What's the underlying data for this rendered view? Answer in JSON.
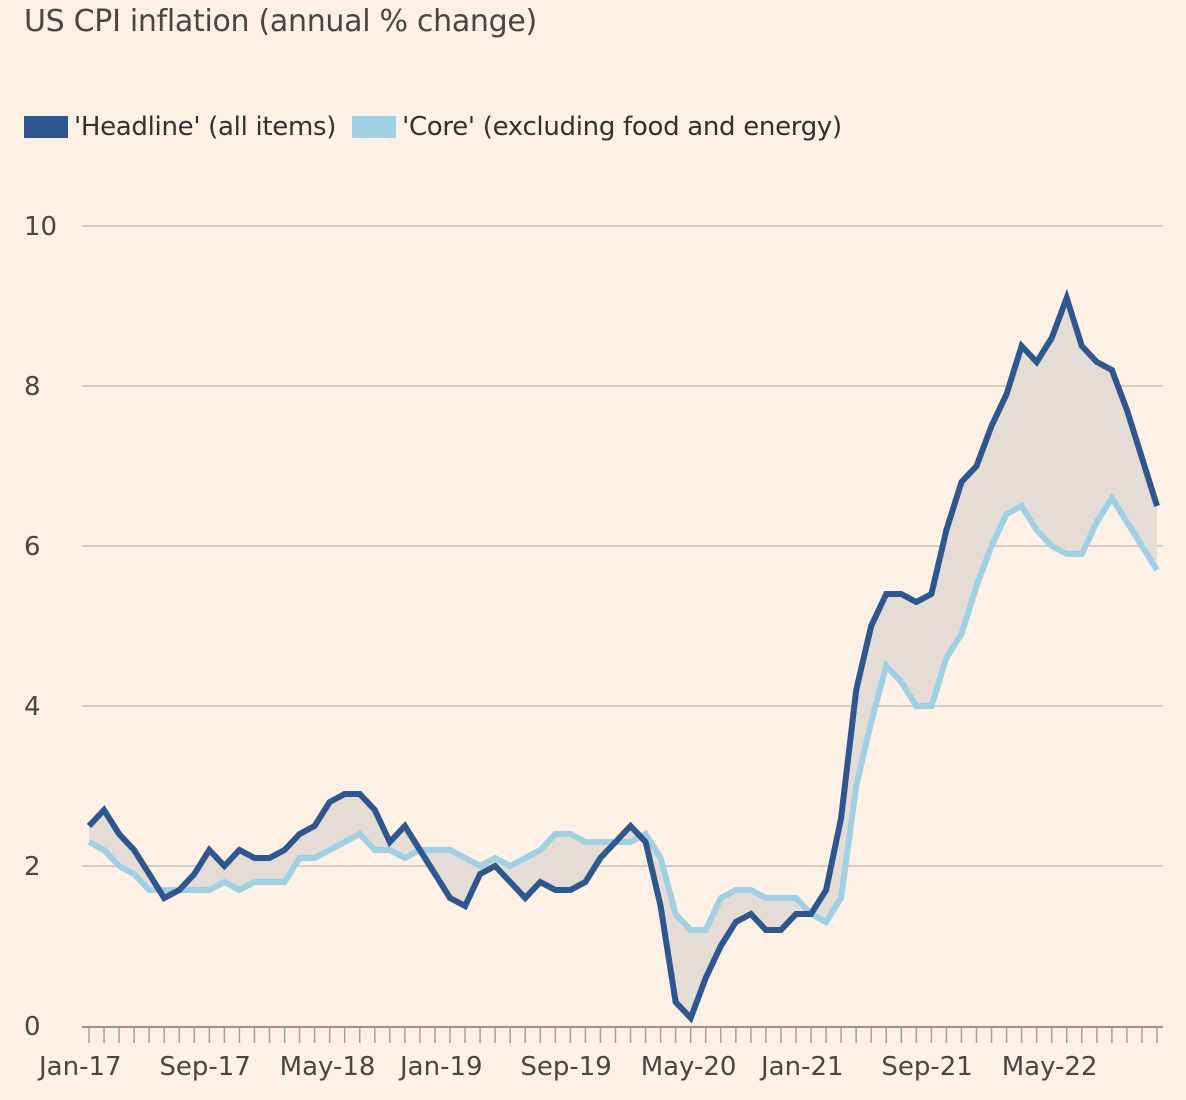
{
  "chart_data": {
    "type": "line",
    "title": "US CPI inflation (annual % change)",
    "xlabel": "",
    "ylabel": "",
    "ylim": [
      0,
      10
    ],
    "yticks": [
      0,
      2,
      4,
      6,
      8,
      10
    ],
    "grid": true,
    "legend_position": "top-left",
    "x_start": "Jan-17",
    "x_end": "Dec-22",
    "x_tick_labels": [
      {
        "label": "Jan-17",
        "index": 0
      },
      {
        "label": "Sep-17",
        "index": 8
      },
      {
        "label": "May-18",
        "index": 16
      },
      {
        "label": "Jan-19",
        "index": 24
      },
      {
        "label": "Sep-19",
        "index": 32
      },
      {
        "label": "May-20",
        "index": 40
      },
      {
        "label": "Jan-21",
        "index": 48
      },
      {
        "label": "Sep-21",
        "index": 56
      },
      {
        "label": "May-22",
        "index": 64
      }
    ],
    "series": [
      {
        "name": "'Headline' (all items)",
        "color": "#2e578f",
        "values": [
          2.5,
          2.7,
          2.4,
          2.2,
          1.9,
          1.6,
          1.7,
          1.9,
          2.2,
          2.0,
          2.2,
          2.1,
          2.1,
          2.2,
          2.4,
          2.5,
          2.8,
          2.9,
          2.9,
          2.7,
          2.3,
          2.5,
          2.2,
          1.9,
          1.6,
          1.5,
          1.9,
          2.0,
          1.8,
          1.6,
          1.8,
          1.7,
          1.7,
          1.8,
          2.1,
          2.3,
          2.5,
          2.3,
          1.5,
          0.3,
          0.1,
          0.6,
          1.0,
          1.3,
          1.4,
          1.2,
          1.2,
          1.4,
          1.4,
          1.7,
          2.6,
          4.2,
          5.0,
          5.4,
          5.4,
          5.3,
          5.4,
          6.2,
          6.8,
          7.0,
          7.5,
          7.9,
          8.5,
          8.3,
          8.6,
          9.1,
          8.5,
          8.3,
          8.2,
          7.7,
          7.1,
          6.5
        ]
      },
      {
        "name": "'Core' (excluding food and energy)",
        "color": "#9fd0e4",
        "values": [
          2.3,
          2.2,
          2.0,
          1.9,
          1.7,
          1.7,
          1.7,
          1.7,
          1.7,
          1.8,
          1.7,
          1.8,
          1.8,
          1.8,
          2.1,
          2.1,
          2.2,
          2.3,
          2.4,
          2.2,
          2.2,
          2.1,
          2.2,
          2.2,
          2.2,
          2.1,
          2.0,
          2.1,
          2.0,
          2.1,
          2.2,
          2.4,
          2.4,
          2.3,
          2.3,
          2.3,
          2.3,
          2.4,
          2.1,
          1.4,
          1.2,
          1.2,
          1.6,
          1.7,
          1.7,
          1.6,
          1.6,
          1.6,
          1.4,
          1.3,
          1.6,
          3.0,
          3.8,
          4.5,
          4.3,
          4.0,
          4.0,
          4.6,
          4.9,
          5.5,
          6.0,
          6.4,
          6.5,
          6.2,
          6.0,
          5.9,
          5.9,
          6.3,
          6.6,
          6.3,
          6.0,
          5.7
        ]
      }
    ],
    "fill_between": {
      "color": "#e5ddd5",
      "description": "shaded area between headline and core"
    }
  }
}
